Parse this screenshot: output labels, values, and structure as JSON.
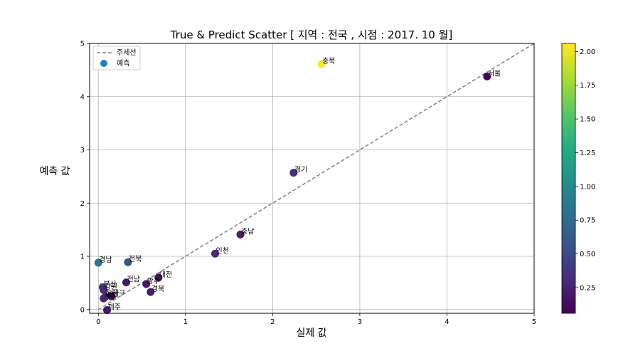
{
  "chart_data": {
    "type": "scatter",
    "title": "True & Predict Scatter  [ 지역 : 전국 , 시점 : 2017. 10 월]",
    "xlabel": "실제 값",
    "ylabel": "예측 값",
    "xlim": [
      -0.1,
      5
    ],
    "ylim": [
      -0.07,
      5
    ],
    "xticks": [
      "0",
      "1",
      "2",
      "3",
      "4",
      "5"
    ],
    "yticks": [
      "0",
      "1",
      "2",
      "3",
      "4",
      "5"
    ],
    "grid": true,
    "legend": {
      "placement": "top-left",
      "entries": [
        "주세선",
        "예측"
      ]
    },
    "reference_line": {
      "name": "주세선",
      "from": [
        0,
        0
      ],
      "to": [
        5,
        5
      ],
      "color": "#808080",
      "style": "dashed"
    },
    "series": [
      {
        "name": "예측",
        "points": [
          {
            "label": "충북",
            "x": 2.56,
            "y": 4.61,
            "c": 2.05
          },
          {
            "label": "서울",
            "x": 4.46,
            "y": 4.38,
            "c": 0.08
          },
          {
            "label": "경기",
            "x": 2.24,
            "y": 2.57,
            "c": 0.33
          },
          {
            "label": "충남",
            "x": 1.63,
            "y": 1.41,
            "c": 0.22
          },
          {
            "label": "인천",
            "x": 1.34,
            "y": 1.05,
            "c": 0.29
          },
          {
            "label": "경남",
            "x": 0.0,
            "y": 0.88,
            "c": 0.85
          },
          {
            "label": "전북",
            "x": 0.34,
            "y": 0.89,
            "c": 0.55
          },
          {
            "label": "대전",
            "x": 0.69,
            "y": 0.6,
            "c": 0.15
          },
          {
            "label": "전남",
            "x": 0.32,
            "y": 0.51,
            "c": 0.2
          },
          {
            "label": "광주",
            "x": 0.55,
            "y": 0.48,
            "c": 0.18
          },
          {
            "label": "경북",
            "x": 0.6,
            "y": 0.33,
            "c": 0.22
          },
          {
            "label": "부산",
            "x": 0.05,
            "y": 0.42,
            "c": 0.35
          },
          {
            "label": "강원",
            "x": 0.06,
            "y": 0.37,
            "c": 0.3
          },
          {
            "label": "울산",
            "x": 0.08,
            "y": 0.24,
            "c": 0.25
          },
          {
            "label": "대구",
            "x": 0.15,
            "y": 0.25,
            "c": 0.1
          },
          {
            "label": "세종",
            "x": 0.06,
            "y": 0.21,
            "c": 0.28
          },
          {
            "label": "제주",
            "x": 0.1,
            "y": -0.01,
            "c": 0.2
          }
        ]
      }
    ],
    "colorbar": {
      "colormap": "viridis",
      "range": [
        0.06,
        2.06
      ],
      "ticks": [
        "0.25",
        "0.50",
        "0.75",
        "1.00",
        "1.25",
        "1.50",
        "1.75",
        "2.00"
      ]
    }
  }
}
